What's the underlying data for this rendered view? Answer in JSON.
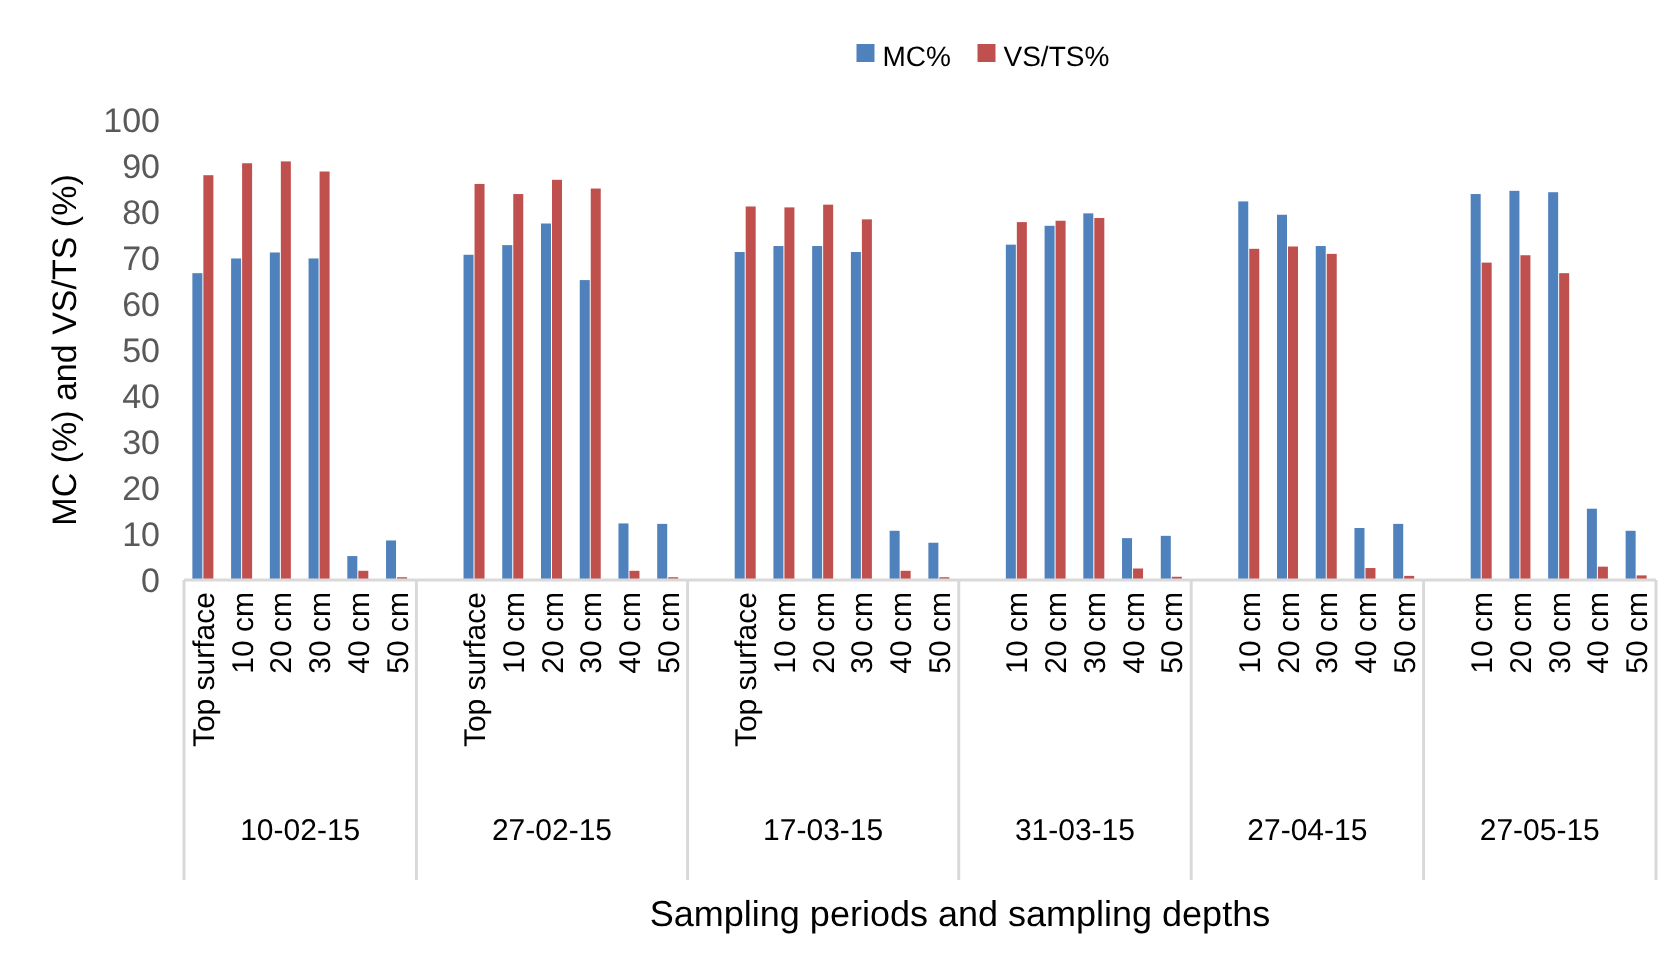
{
  "chart_data": {
    "type": "bar",
    "xlabel": "Sampling periods and sampling depths",
    "ylabel": "MC (%) and VS/TS (%)",
    "categories": [
      "Top surface",
      "10 cm",
      "20 cm",
      "30 cm",
      "40 cm",
      "50 cm",
      null,
      "Top surface",
      "10 cm",
      "20 cm",
      "30 cm",
      "40 cm",
      "50 cm",
      null,
      "Top surface",
      "10 cm",
      "20 cm",
      "30 cm",
      "40 cm",
      "50 cm",
      null,
      "10 cm",
      "20 cm",
      "30 cm",
      "40 cm",
      "50 cm",
      null,
      "10 cm",
      "20 cm",
      "30 cm",
      "40 cm",
      "50 cm",
      null,
      "10 cm",
      "20 cm",
      "30 cm",
      "40 cm",
      "50 cm"
    ],
    "annotations": [
      "10-02-15",
      "27-02-15",
      "17-03-15",
      "31-03-15",
      "27-04-15",
      "27-05-15"
    ],
    "series": [
      {
        "name": "MC%",
        "color": "#4f81bd",
        "values": [
          66.7,
          69.9,
          71.2,
          69.9,
          5.2,
          8.6,
          null,
          70.7,
          72.8,
          77.5,
          65.2,
          12.3,
          12.2,
          null,
          71.3,
          72.6,
          72.6,
          71.3,
          10.7,
          8.1,
          null,
          72.9,
          77.0,
          79.7,
          9.1,
          9.6,
          null,
          82.3,
          79.4,
          72.6,
          11.3,
          12.2,
          null,
          83.9,
          84.6,
          84.3,
          15.5,
          10.7
        ]
      },
      {
        "name": "VS/TS%",
        "color": "#c0504d",
        "values": [
          88.0,
          90.6,
          91.0,
          88.8,
          2.0,
          0.6,
          null,
          86.1,
          83.9,
          87.0,
          85.1,
          2.0,
          0.6,
          null,
          81.2,
          81.0,
          81.6,
          78.4,
          2.0,
          0.6,
          null,
          77.8,
          78.1,
          78.7,
          2.5,
          0.7,
          null,
          72.0,
          72.5,
          70.9,
          2.6,
          0.9,
          null,
          69.0,
          70.6,
          66.7,
          2.9,
          1.0
        ]
      }
    ],
    "ylim": [
      0,
      100
    ],
    "yticks": [
      0,
      10,
      20,
      30,
      40,
      50,
      60,
      70,
      80,
      90,
      100
    ],
    "grid": false,
    "legend": "top"
  }
}
